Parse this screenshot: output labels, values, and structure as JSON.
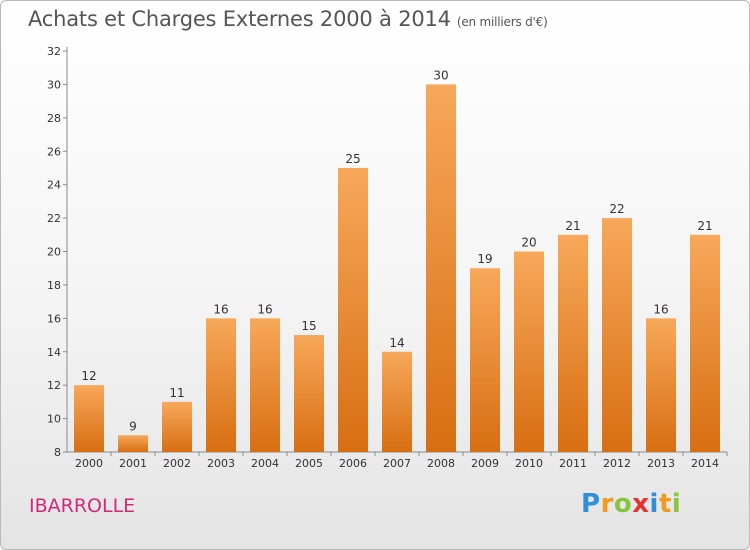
{
  "header": {
    "title": "Achats et Charges Externes 2000 à 2014",
    "unit": "(en milliers d'€)"
  },
  "footer": {
    "commune": "IBARROLLE",
    "logo_letters": [
      {
        "ch": "P",
        "color": "#2f8fd8"
      },
      {
        "ch": "r",
        "color": "#f39a1e"
      },
      {
        "ch": "o",
        "color": "#8ac43f"
      },
      {
        "ch": "x",
        "color": "#e8312f"
      },
      {
        "ch": "i",
        "color": "#2f8fd8"
      },
      {
        "ch": "t",
        "color": "#f39a1e"
      },
      {
        "ch": "i",
        "color": "#8ac43f"
      }
    ]
  },
  "colors": {
    "bar_top": "#f7a85a",
    "bar_bottom": "#d86e12",
    "axis": "#8a8a8a"
  },
  "chart_data": {
    "type": "bar",
    "categories": [
      "2000",
      "2001",
      "2002",
      "2003",
      "2004",
      "2005",
      "2006",
      "2007",
      "2008",
      "2009",
      "2010",
      "2011",
      "2012",
      "2013",
      "2014"
    ],
    "values": [
      12,
      9,
      11,
      16,
      16,
      15,
      25,
      14,
      30,
      19,
      20,
      21,
      22,
      16,
      21
    ],
    "title": "Achats et Charges Externes 2000 à 2014",
    "xlabel": "",
    "ylabel": "",
    "ylim": [
      8,
      32
    ],
    "yticks": [
      8,
      10,
      12,
      14,
      16,
      18,
      20,
      22,
      24,
      26,
      28,
      30,
      32
    ],
    "grid": false,
    "data_labels": true
  }
}
